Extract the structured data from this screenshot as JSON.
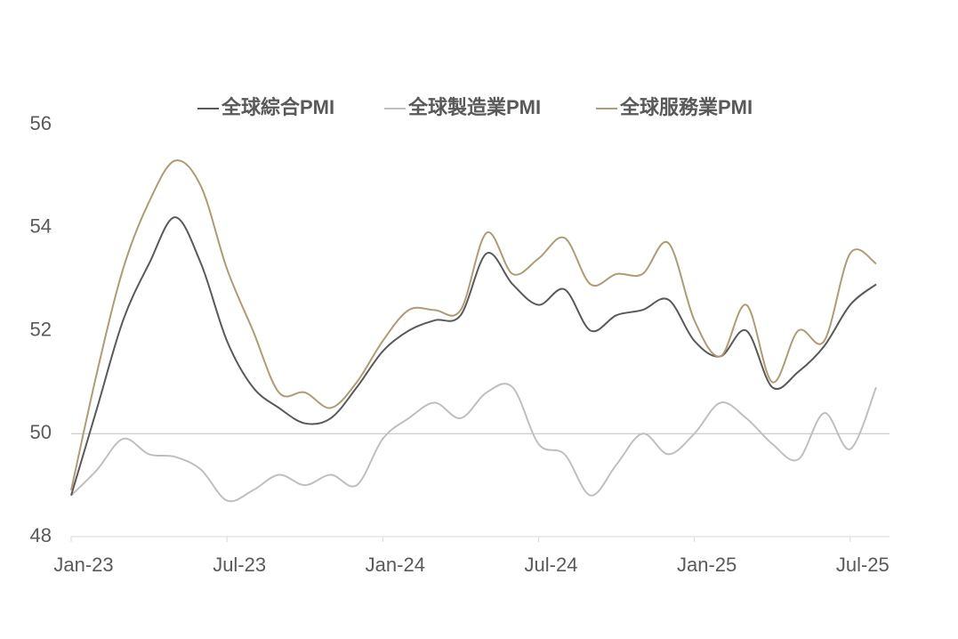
{
  "chart_data": {
    "type": "line",
    "categories": [
      "Jan-23",
      null,
      null,
      null,
      null,
      null,
      "Jul-23",
      null,
      null,
      null,
      null,
      null,
      "Jan-24",
      null,
      null,
      null,
      null,
      null,
      "Jul-24",
      null,
      null,
      null,
      null,
      null,
      "Jan-25",
      null,
      null,
      null,
      null,
      null,
      "Jul-25",
      null
    ],
    "series": [
      {
        "name": "全球綜合PMI",
        "color": "#595959",
        "values": [
          48.8,
          50.5,
          52.2,
          53.3,
          54.2,
          53.3,
          51.8,
          50.9,
          50.5,
          50.2,
          50.3,
          50.9,
          51.6,
          52.0,
          52.2,
          52.3,
          53.5,
          52.9,
          52.5,
          52.8,
          52.0,
          52.3,
          52.4,
          52.6,
          51.8,
          51.5,
          52.0,
          50.9,
          51.2,
          51.7,
          52.5,
          52.9
        ]
      },
      {
        "name": "全球製造業PMI",
        "color": "#bfbfbf",
        "values": [
          48.8,
          49.3,
          49.9,
          49.6,
          49.55,
          49.3,
          48.7,
          48.9,
          49.2,
          49.0,
          49.2,
          49.0,
          49.9,
          50.3,
          50.6,
          50.3,
          50.8,
          50.9,
          49.8,
          49.6,
          48.8,
          49.4,
          50.0,
          49.6,
          50.0,
          50.6,
          50.3,
          49.8,
          49.5,
          50.4,
          49.7,
          50.9
        ]
      },
      {
        "name": "全球服務業PMI",
        "color": "#b09b72",
        "values": [
          48.9,
          51.2,
          53.2,
          54.5,
          55.3,
          54.8,
          53.2,
          52.0,
          50.8,
          50.8,
          50.5,
          51.0,
          51.8,
          52.4,
          52.4,
          52.4,
          53.9,
          53.1,
          53.4,
          53.8,
          52.9,
          53.1,
          53.1,
          53.7,
          52.2,
          51.5,
          52.5,
          51.0,
          52.0,
          51.8,
          53.5,
          53.3
        ]
      }
    ],
    "ylim": [
      48,
      56
    ],
    "yticks": [
      48,
      50,
      52,
      54,
      56
    ],
    "reference_line": 50,
    "legend": "top"
  }
}
